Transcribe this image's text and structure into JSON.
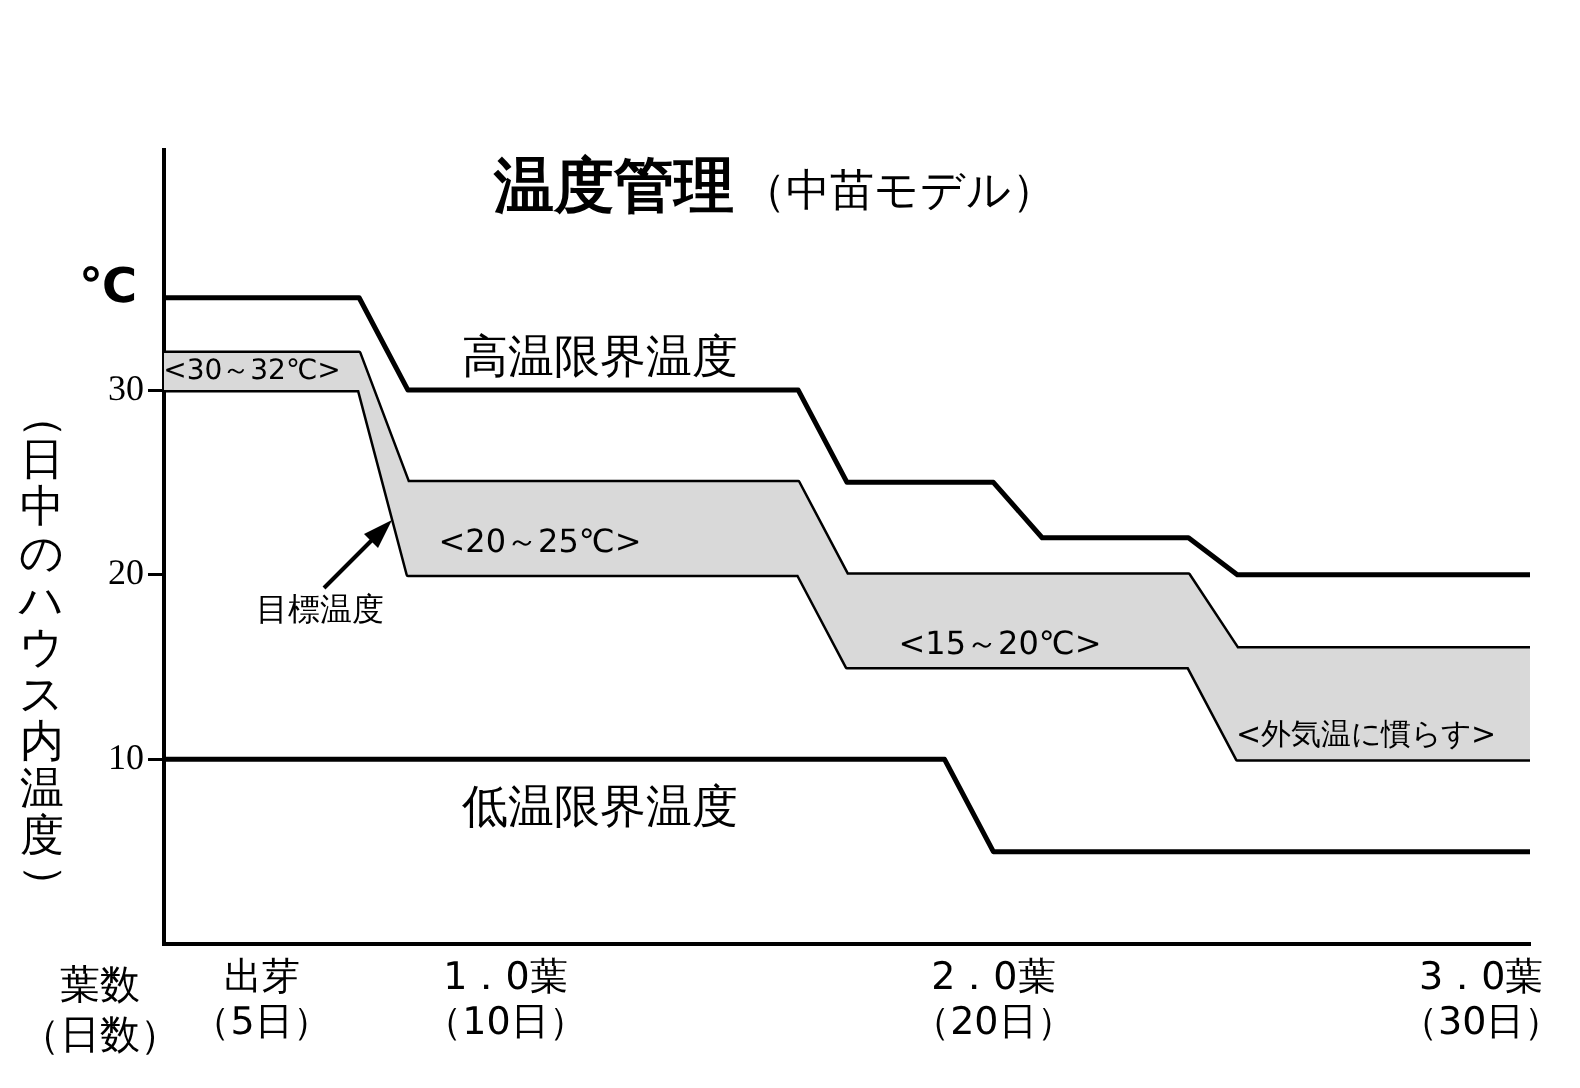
{
  "chart_data": {
    "type": "line",
    "title": "温度管理",
    "subtitle": "（中苗モデル）",
    "xlabel": "葉数（日数）",
    "ylabel": "（日中のハウス内温度）",
    "categories": [
      null,
      null,
      "出芽（5日）",
      null,
      null,
      null,
      null,
      "1．0葉（10日）",
      null,
      null,
      null,
      null,
      null,
      null,
      null,
      null,
      null,
      "2．0葉（20日）",
      null,
      null,
      null,
      null,
      null,
      null,
      null,
      null,
      null,
      "3．0葉（30日）",
      null
    ],
    "ylim": [
      0,
      43
    ],
    "yticks": [
      10,
      20,
      30
    ],
    "grid": false,
    "legend": false,
    "marker": "none",
    "line_style": "solid",
    "series": [
      {
        "color": "#000000",
        "values": [
          32,
          32,
          32,
          32,
          32,
          25,
          25,
          25,
          25,
          25,
          25,
          25,
          25,
          25,
          20,
          20,
          20,
          20,
          20,
          20,
          20,
          20,
          16,
          16,
          16,
          16,
          16,
          16,
          16
        ],
        "upper": [
          32,
          32,
          32,
          32,
          32,
          25,
          25,
          25,
          25,
          25,
          25,
          25,
          25,
          25,
          20,
          20,
          20,
          20,
          20,
          20,
          20,
          20,
          16,
          16,
          16,
          16,
          16,
          16,
          16
        ],
        "lower": [
          30,
          30,
          30,
          30,
          30,
          20,
          20,
          20,
          20,
          20,
          20,
          20,
          20,
          20,
          15,
          15,
          15,
          15,
          15,
          15,
          15,
          15,
          10,
          10,
          10,
          10,
          10,
          10,
          10
        ]
      },
      {
        "color": "#000000",
        "values": [
          30,
          30,
          30,
          30,
          30,
          20,
          20,
          20,
          20,
          20,
          20,
          20,
          20,
          20,
          15,
          15,
          15,
          15,
          15,
          15,
          15,
          15,
          10,
          10,
          10,
          10,
          10,
          10,
          10
        ]
      },
      {
        "color": "#000000",
        "values": [
          35,
          35,
          35,
          35,
          35,
          30,
          30,
          30,
          30,
          30,
          30,
          30,
          30,
          30,
          25,
          25,
          25,
          25,
          22,
          22,
          22,
          22,
          20,
          20,
          20,
          20,
          20,
          20,
          20
        ]
      },
      {
        "color": "#000000",
        "values": [
          10,
          10,
          10,
          10,
          10,
          10,
          10,
          10,
          10,
          10,
          10,
          10,
          10,
          10,
          10,
          10,
          10,
          5,
          5,
          5,
          5,
          5,
          5,
          5,
          5,
          5,
          5,
          5,
          5
        ]
      }
    ],
    "annotations": [
      "℃",
      "高温限界温度",
      "<30～32℃>",
      "<20～25℃>",
      "目標温度",
      "<15～20℃>",
      "<外気温に慣らす>",
      "低温限界温度"
    ]
  }
}
